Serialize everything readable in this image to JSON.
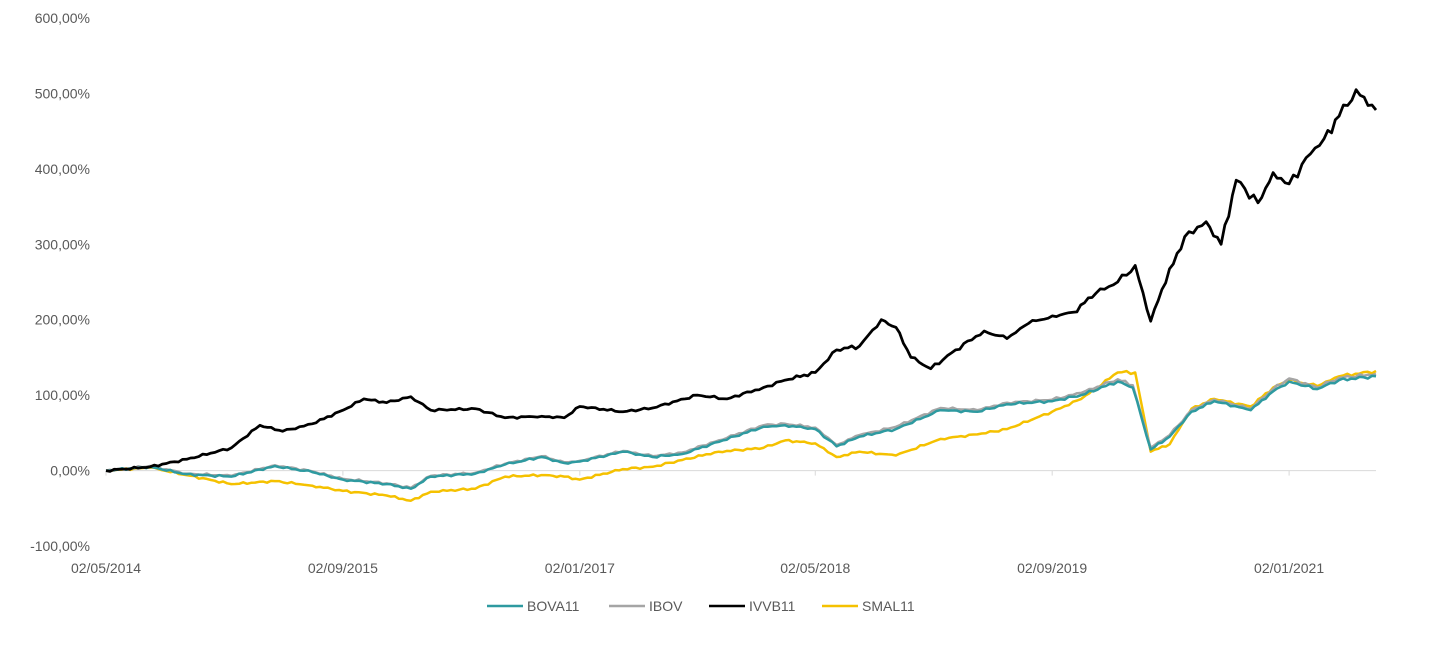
{
  "chart_data": {
    "type": "line",
    "title": "",
    "xlabel": "",
    "ylabel": "",
    "ylim": [
      -100,
      600
    ],
    "y_ticks": [
      -100,
      0,
      100,
      200,
      300,
      400,
      500,
      600
    ],
    "y_tick_labels": [
      "-100,00%",
      "0,00%",
      "100,00%",
      "200,00%",
      "300,00%",
      "400,00%",
      "500,00%",
      "600,00%"
    ],
    "x_tick_labels": [
      "02/05/2014",
      "02/09/2015",
      "02/01/2017",
      "02/05/2018",
      "02/09/2019",
      "02/01/2021"
    ],
    "x_ticks": [
      "2014-05-02",
      "2015-09-02",
      "2017-01-02",
      "2018-05-02",
      "2019-09-02",
      "2021-01-02"
    ],
    "x_end": "2021-06-30",
    "grid": false,
    "legend_position": "bottom",
    "series": [
      {
        "name": "BOVA11",
        "color": "#2E9AA0",
        "points": [
          [
            "2014-05-02",
            0
          ],
          [
            "2014-08-01",
            5
          ],
          [
            "2014-10-15",
            -5
          ],
          [
            "2015-01-15",
            -8
          ],
          [
            "2015-04-15",
            6
          ],
          [
            "2015-07-01",
            -2
          ],
          [
            "2015-09-02",
            -12
          ],
          [
            "2015-12-01",
            -18
          ],
          [
            "2016-01-20",
            -24
          ],
          [
            "2016-03-01",
            -8
          ],
          [
            "2016-06-01",
            -4
          ],
          [
            "2016-08-01",
            8
          ],
          [
            "2016-10-15",
            18
          ],
          [
            "2016-12-01",
            10
          ],
          [
            "2017-01-02",
            12
          ],
          [
            "2017-04-01",
            25
          ],
          [
            "2017-06-01",
            18
          ],
          [
            "2017-08-01",
            22
          ],
          [
            "2017-10-15",
            38
          ],
          [
            "2018-01-15",
            58
          ],
          [
            "2018-03-01",
            60
          ],
          [
            "2018-05-02",
            55
          ],
          [
            "2018-06-15",
            32
          ],
          [
            "2018-08-01",
            45
          ],
          [
            "2018-10-15",
            55
          ],
          [
            "2019-01-15",
            80
          ],
          [
            "2019-04-01",
            78
          ],
          [
            "2019-06-01",
            88
          ],
          [
            "2019-09-02",
            92
          ],
          [
            "2019-11-01",
            100
          ],
          [
            "2020-01-15",
            118
          ],
          [
            "2020-02-15",
            110
          ],
          [
            "2020-03-23",
            28
          ],
          [
            "2020-05-01",
            45
          ],
          [
            "2020-06-15",
            78
          ],
          [
            "2020-08-01",
            92
          ],
          [
            "2020-10-15",
            80
          ],
          [
            "2020-11-30",
            105
          ],
          [
            "2021-01-02",
            118
          ],
          [
            "2021-03-01",
            108
          ],
          [
            "2021-04-15",
            120
          ],
          [
            "2021-06-30",
            125
          ]
        ]
      },
      {
        "name": "IBOV",
        "color": "#A5A5A5",
        "points": [
          [
            "2014-05-02",
            0
          ],
          [
            "2014-08-01",
            6
          ],
          [
            "2014-10-15",
            -4
          ],
          [
            "2015-01-15",
            -7
          ],
          [
            "2015-04-15",
            7
          ],
          [
            "2015-07-01",
            -1
          ],
          [
            "2015-09-02",
            -11
          ],
          [
            "2015-12-01",
            -17
          ],
          [
            "2016-01-20",
            -23
          ],
          [
            "2016-03-01",
            -7
          ],
          [
            "2016-06-01",
            -3
          ],
          [
            "2016-08-01",
            9
          ],
          [
            "2016-10-15",
            19
          ],
          [
            "2016-12-01",
            11
          ],
          [
            "2017-01-02",
            13
          ],
          [
            "2017-04-01",
            26
          ],
          [
            "2017-06-01",
            19
          ],
          [
            "2017-08-01",
            24
          ],
          [
            "2017-10-15",
            40
          ],
          [
            "2018-01-15",
            60
          ],
          [
            "2018-03-01",
            62
          ],
          [
            "2018-05-02",
            57
          ],
          [
            "2018-06-15",
            34
          ],
          [
            "2018-08-01",
            47
          ],
          [
            "2018-10-15",
            58
          ],
          [
            "2019-01-15",
            83
          ],
          [
            "2019-04-01",
            80
          ],
          [
            "2019-06-01",
            90
          ],
          [
            "2019-09-02",
            94
          ],
          [
            "2019-11-01",
            103
          ],
          [
            "2020-01-15",
            121
          ],
          [
            "2020-02-15",
            113
          ],
          [
            "2020-03-23",
            30
          ],
          [
            "2020-05-01",
            47
          ],
          [
            "2020-06-15",
            80
          ],
          [
            "2020-08-01",
            94
          ],
          [
            "2020-10-15",
            82
          ],
          [
            "2020-11-30",
            108
          ],
          [
            "2021-01-02",
            122
          ],
          [
            "2021-03-01",
            110
          ],
          [
            "2021-04-15",
            123
          ],
          [
            "2021-06-30",
            128
          ]
        ]
      },
      {
        "name": "IVVB11",
        "color": "#000000",
        "points": [
          [
            "2014-05-02",
            0
          ],
          [
            "2014-08-01",
            5
          ],
          [
            "2014-10-15",
            15
          ],
          [
            "2015-01-15",
            30
          ],
          [
            "2015-03-15",
            60
          ],
          [
            "2015-05-01",
            52
          ],
          [
            "2015-07-01",
            62
          ],
          [
            "2015-09-02",
            80
          ],
          [
            "2015-10-15",
            95
          ],
          [
            "2015-12-01",
            90
          ],
          [
            "2016-01-20",
            98
          ],
          [
            "2016-03-01",
            80
          ],
          [
            "2016-06-01",
            82
          ],
          [
            "2016-08-01",
            70
          ],
          [
            "2016-10-15",
            72
          ],
          [
            "2016-12-01",
            70
          ],
          [
            "2017-01-02",
            85
          ],
          [
            "2017-04-01",
            78
          ],
          [
            "2017-06-01",
            83
          ],
          [
            "2017-09-01",
            100
          ],
          [
            "2017-11-01",
            95
          ],
          [
            "2018-01-15",
            110
          ],
          [
            "2018-03-01",
            120
          ],
          [
            "2018-05-02",
            130
          ],
          [
            "2018-06-15",
            160
          ],
          [
            "2018-08-01",
            165
          ],
          [
            "2018-09-15",
            200
          ],
          [
            "2018-10-15",
            190
          ],
          [
            "2018-11-15",
            150
          ],
          [
            "2018-12-26",
            135
          ],
          [
            "2019-02-15",
            160
          ],
          [
            "2019-04-15",
            185
          ],
          [
            "2019-06-01",
            175
          ],
          [
            "2019-07-15",
            195
          ],
          [
            "2019-09-02",
            205
          ],
          [
            "2019-10-15",
            210
          ],
          [
            "2019-12-01",
            235
          ],
          [
            "2020-01-15",
            250
          ],
          [
            "2020-02-20",
            272
          ],
          [
            "2020-03-23",
            198
          ],
          [
            "2020-04-15",
            240
          ],
          [
            "2020-06-01",
            310
          ],
          [
            "2020-07-15",
            330
          ],
          [
            "2020-08-15",
            300
          ],
          [
            "2020-09-15",
            385
          ],
          [
            "2020-10-30",
            355
          ],
          [
            "2020-11-30",
            395
          ],
          [
            "2021-01-02",
            380
          ],
          [
            "2021-02-15",
            420
          ],
          [
            "2021-03-15",
            440
          ],
          [
            "2021-04-15",
            470
          ],
          [
            "2021-05-20",
            505
          ],
          [
            "2021-06-30",
            478
          ]
        ]
      },
      {
        "name": "SMAL11",
        "color": "#F5C100",
        "points": [
          [
            "2014-05-02",
            0
          ],
          [
            "2014-08-01",
            4
          ],
          [
            "2014-10-15",
            -6
          ],
          [
            "2015-01-15",
            -18
          ],
          [
            "2015-04-15",
            -14
          ],
          [
            "2015-07-01",
            -20
          ],
          [
            "2015-09-02",
            -27
          ],
          [
            "2015-12-01",
            -33
          ],
          [
            "2016-01-20",
            -40
          ],
          [
            "2016-03-01",
            -28
          ],
          [
            "2016-06-01",
            -24
          ],
          [
            "2016-08-01",
            -8
          ],
          [
            "2016-10-15",
            -6
          ],
          [
            "2016-12-01",
            -8
          ],
          [
            "2017-01-02",
            -12
          ],
          [
            "2017-04-01",
            2
          ],
          [
            "2017-06-01",
            5
          ],
          [
            "2017-08-01",
            14
          ],
          [
            "2017-10-15",
            25
          ],
          [
            "2018-01-15",
            30
          ],
          [
            "2018-03-01",
            40
          ],
          [
            "2018-05-02",
            36
          ],
          [
            "2018-06-15",
            18
          ],
          [
            "2018-08-01",
            25
          ],
          [
            "2018-10-15",
            20
          ],
          [
            "2019-01-15",
            42
          ],
          [
            "2019-04-01",
            48
          ],
          [
            "2019-06-01",
            55
          ],
          [
            "2019-09-02",
            78
          ],
          [
            "2019-11-01",
            95
          ],
          [
            "2020-01-15",
            130
          ],
          [
            "2020-02-20",
            130
          ],
          [
            "2020-03-23",
            25
          ],
          [
            "2020-05-01",
            35
          ],
          [
            "2020-06-15",
            82
          ],
          [
            "2020-08-01",
            95
          ],
          [
            "2020-10-15",
            85
          ],
          [
            "2020-11-30",
            110
          ],
          [
            "2021-01-02",
            120
          ],
          [
            "2021-03-01",
            112
          ],
          [
            "2021-04-15",
            125
          ],
          [
            "2021-06-30",
            132
          ]
        ]
      }
    ]
  }
}
